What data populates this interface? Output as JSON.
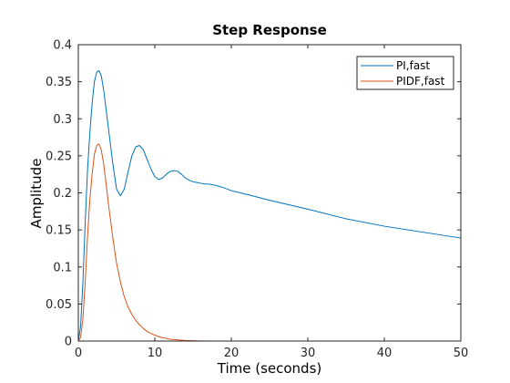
{
  "chart_data": {
    "type": "line",
    "title": "Step Response",
    "xlabel": "Time (seconds)",
    "ylabel": "Amplitude",
    "xlim": [
      0,
      50
    ],
    "ylim": [
      0,
      0.4
    ],
    "xticks": [
      0,
      10,
      20,
      30,
      40,
      50
    ],
    "yticks": [
      0,
      0.05,
      0.1,
      0.15,
      0.2,
      0.25,
      0.3,
      0.35,
      0.4
    ],
    "xtick_labels": [
      "0",
      "10",
      "20",
      "30",
      "40",
      "50"
    ],
    "ytick_labels": [
      "0",
      "0.05",
      "0.1",
      "0.15",
      "0.2",
      "0.25",
      "0.3",
      "0.35",
      "0.4"
    ],
    "grid": false,
    "legend_position": "top-right",
    "series": [
      {
        "name": "PI,fast",
        "color": "#0072bd",
        "x": [
          0,
          0.3,
          0.6,
          0.9,
          1.2,
          1.5,
          1.8,
          2.1,
          2.4,
          2.7,
          3.0,
          3.3,
          3.6,
          4.0,
          4.5,
          5.0,
          5.5,
          6.0,
          6.5,
          7.0,
          7.5,
          8.0,
          8.5,
          9.0,
          9.5,
          10.0,
          10.5,
          11.0,
          11.5,
          12.0,
          12.5,
          13.0,
          13.5,
          14.0,
          14.5,
          15.0,
          15.5,
          16.0,
          16.5,
          17.0,
          17.5,
          18.0,
          19.0,
          20.0,
          22.0,
          25.0,
          30.0,
          35.0,
          40.0,
          45.0,
          50.0
        ],
        "y": [
          0,
          0.02,
          0.08,
          0.16,
          0.23,
          0.28,
          0.32,
          0.35,
          0.363,
          0.365,
          0.358,
          0.34,
          0.315,
          0.282,
          0.24,
          0.205,
          0.196,
          0.205,
          0.228,
          0.25,
          0.262,
          0.264,
          0.258,
          0.245,
          0.232,
          0.222,
          0.218,
          0.22,
          0.225,
          0.229,
          0.23,
          0.229,
          0.225,
          0.22,
          0.217,
          0.215,
          0.214,
          0.213,
          0.212,
          0.212,
          0.211,
          0.21,
          0.207,
          0.203,
          0.198,
          0.19,
          0.178,
          0.165,
          0.155,
          0.147,
          0.139
        ]
      },
      {
        "name": "PIDF,fast",
        "color": "#d95319",
        "x": [
          0,
          0.3,
          0.6,
          0.9,
          1.2,
          1.5,
          1.8,
          2.1,
          2.4,
          2.7,
          3.0,
          3.3,
          3.6,
          4.0,
          4.5,
          5.0,
          5.5,
          6.0,
          6.5,
          7.0,
          7.5,
          8.0,
          8.5,
          9.0,
          9.5,
          10.0,
          10.5,
          11.0,
          11.5,
          12.0,
          13.0,
          14.0,
          15.0,
          16.0,
          18.0,
          20.0,
          25.0,
          30.0,
          40.0,
          50.0
        ],
        "y": [
          0,
          0.005,
          0.03,
          0.08,
          0.14,
          0.19,
          0.225,
          0.252,
          0.264,
          0.266,
          0.258,
          0.24,
          0.215,
          0.18,
          0.14,
          0.105,
          0.08,
          0.06,
          0.046,
          0.036,
          0.028,
          0.022,
          0.017,
          0.013,
          0.01,
          0.008,
          0.006,
          0.0045,
          0.0035,
          0.0025,
          0.0015,
          0.0008,
          0.0004,
          0.0002,
          5e-05,
          0,
          0,
          0,
          0,
          0
        ]
      }
    ]
  }
}
